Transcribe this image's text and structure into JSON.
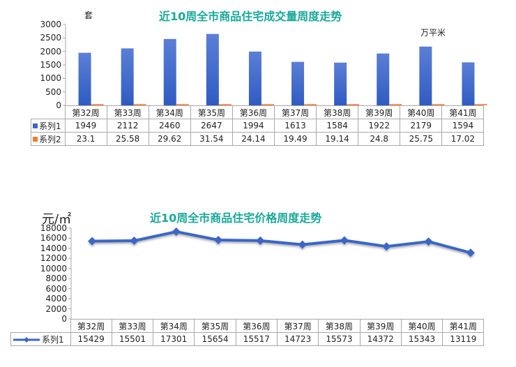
{
  "chart_data": [
    {
      "type": "bar",
      "title": "近10周全市商品住宅成交量周度走势",
      "left_unit": "套",
      "right_unit": "万平米",
      "ylim": [
        0,
        3000
      ],
      "yticks": [
        "0",
        "500",
        "1000",
        "1500",
        "2000",
        "2500",
        "3000"
      ],
      "categories": [
        "第32周",
        "第33周",
        "第34周",
        "第35周",
        "第36周",
        "第37周",
        "第38周",
        "第39周",
        "第40周",
        "第41周"
      ],
      "series": [
        {
          "name": "系列1",
          "color": "#3a66c8",
          "values": [
            1949,
            2112,
            2460,
            2647,
            1994,
            1613,
            1584,
            1922,
            2179,
            1594
          ],
          "display": [
            "1949",
            "2112",
            "2460",
            "2647",
            "1994",
            "1613",
            "1584",
            "1922",
            "2179",
            "1594"
          ]
        },
        {
          "name": "系列2",
          "color": "#ed7d31",
          "values": [
            23.1,
            25.58,
            29.62,
            31.54,
            24.14,
            19.49,
            19.14,
            24.8,
            25.75,
            17.02
          ],
          "display": [
            "23.1",
            "25.58",
            "29.62",
            "31.54",
            "24.14",
            "19.49",
            "19.14",
            "24.8",
            "25.75",
            "17.02"
          ]
        }
      ],
      "data_table": true,
      "grid": false
    },
    {
      "type": "line",
      "title": "近10周全市商品住宅价格周度走势",
      "left_unit": "元/㎡",
      "ylim": [
        0,
        18000
      ],
      "yticks": [
        "0",
        "2000",
        "4000",
        "6000",
        "8000",
        "10000",
        "12000",
        "14000",
        "16000",
        "18000"
      ],
      "categories": [
        "第32周",
        "第33周",
        "第34周",
        "第35周",
        "第36周",
        "第37周",
        "第38周",
        "第39周",
        "第40周",
        "第41周"
      ],
      "series": [
        {
          "name": "系列1",
          "color": "#3a66c8",
          "values": [
            15429,
            15501,
            17301,
            15654,
            15517,
            14723,
            15573,
            14372,
            15343,
            13119
          ],
          "display": [
            "15429",
            "15501",
            "17301",
            "15654",
            "15517",
            "14723",
            "15573",
            "14372",
            "15343",
            "13119"
          ]
        }
      ],
      "data_table": true,
      "grid": false
    }
  ]
}
